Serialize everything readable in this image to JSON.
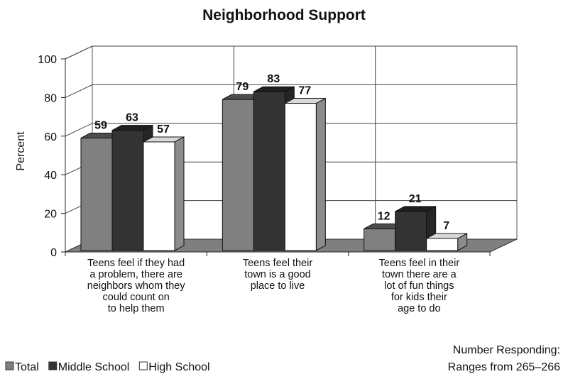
{
  "chart_data": {
    "type": "bar",
    "title": "Neighborhood Support",
    "ylabel": "Percent",
    "xlabel": "",
    "ylim": [
      0,
      100
    ],
    "yticks": [
      0,
      20,
      40,
      60,
      80,
      100
    ],
    "grid": true,
    "legend_position": "bottom-left",
    "categories": [
      [
        "Teens feel if they had",
        "a problem, there are",
        "neighbors whom they",
        "could count on",
        "to help them"
      ],
      [
        "Teens feel their",
        "town is a good",
        "place to live"
      ],
      [
        "Teens feel in their",
        "town there are a",
        "lot of fun things",
        "for kids their",
        "age to do"
      ]
    ],
    "series": [
      {
        "name": "Total",
        "values": [
          59,
          79,
          12
        ],
        "color": "#808080"
      },
      {
        "name": "Middle School",
        "values": [
          63,
          83,
          21
        ],
        "color": "#333333"
      },
      {
        "name": "High School",
        "values": [
          57,
          77,
          7
        ],
        "color": "#ffffff"
      }
    ],
    "note": [
      "Number Responding:",
      "Ranges from 265–266"
    ]
  }
}
